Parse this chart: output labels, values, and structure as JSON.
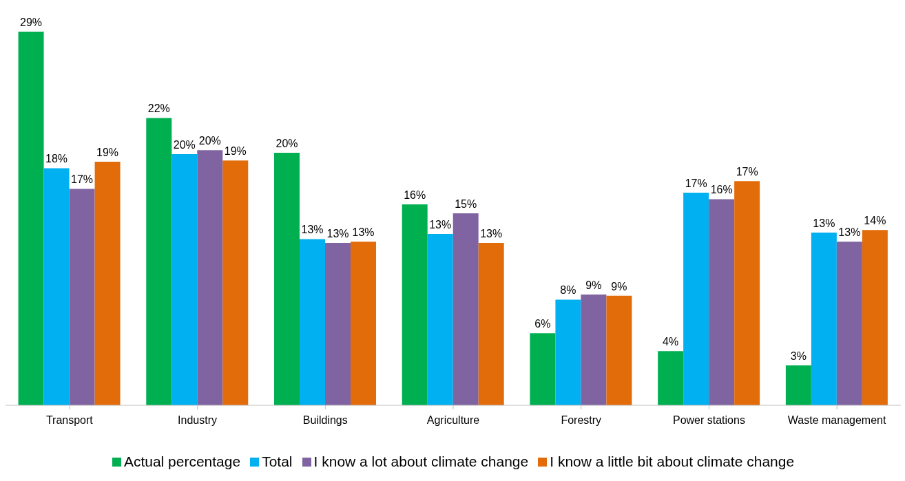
{
  "chart_data": {
    "type": "bar",
    "categories": [
      "Transport",
      "Industry",
      "Buildings",
      "Agriculture",
      "Forestry",
      "Power stations",
      "Waste management"
    ],
    "series": [
      {
        "name": "Actual percentage",
        "color": "#00b050",
        "values": [
          29.0,
          22.3,
          19.6,
          15.6,
          5.6,
          4.2,
          3.1
        ],
        "value_labels": [
          "29%",
          "22%",
          "20%",
          "16%",
          "6%",
          "4%",
          "3%"
        ]
      },
      {
        "name": "Total",
        "color": "#00b0f0",
        "values": [
          18.4,
          19.5,
          12.9,
          13.3,
          8.2,
          16.5,
          13.4
        ],
        "value_labels": [
          "18%",
          "20%",
          "13%",
          "13%",
          "8%",
          "17%",
          "13%"
        ]
      },
      {
        "name": "I know a lot about climate change",
        "color": "#8064a2",
        "values": [
          16.8,
          19.8,
          12.6,
          14.9,
          8.6,
          16.0,
          12.7
        ],
        "value_labels": [
          "17%",
          "20%",
          "13%",
          "15%",
          "9%",
          "16%",
          "13%"
        ]
      },
      {
        "name": "I know a little bit about climate change",
        "color": "#e36c0a",
        "values": [
          18.9,
          19.0,
          12.7,
          12.6,
          8.5,
          17.4,
          13.6
        ],
        "value_labels": [
          "19%",
          "19%",
          "13%",
          "13%",
          "9%",
          "17%",
          "14%"
        ]
      }
    ],
    "legend": "bottom"
  }
}
